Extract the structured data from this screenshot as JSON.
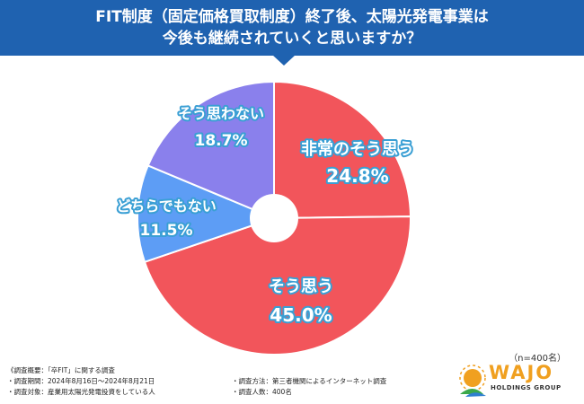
{
  "header": {
    "line1": "FIT制度（固定価格買取制度）終了後、太陽光発電事業は",
    "line2": "今後も継続されていくと思いますか？"
  },
  "chart_data": {
    "type": "pie",
    "donut": true,
    "title": "FIT制度（固定価格買取制度）終了後、太陽光発電事業は今後も継続されていくと思いますか？",
    "slices": [
      {
        "label": "非常のそう思う",
        "value": 24.8,
        "value_label": "24.8%",
        "color": "#f2555b"
      },
      {
        "label": "そう思う",
        "value": 45.0,
        "value_label": "45.0%",
        "color": "#f2555b"
      },
      {
        "label": "どちらでもない",
        "value": 11.5,
        "value_label": "11.5%",
        "color": "#5d9df5"
      },
      {
        "label": "そう思わない",
        "value": 18.7,
        "value_label": "18.7%",
        "color": "#8a80ec"
      }
    ],
    "slice_border_color": "#ffffff",
    "label_outline_color": "#3a9fd4",
    "legend": "none"
  },
  "sample_size": "（n=400名）",
  "footer": {
    "overview": "《調査概要：「卒FIT」に関する調査",
    "period": "・調査期間：2024年8月16日〜2024年8月21日",
    "target": "・調査対象：産業用太陽光発電投資をしている人",
    "method": "・調査方法：第三者機関によるインターネット調査",
    "count": "・調査人数：400名"
  },
  "logo": {
    "name": "WAJO",
    "sub": "HOLDINGS GROUP",
    "colors": {
      "orange": "#f0a020",
      "green": "#3ba84a",
      "blue": "#2f7fd0"
    }
  }
}
